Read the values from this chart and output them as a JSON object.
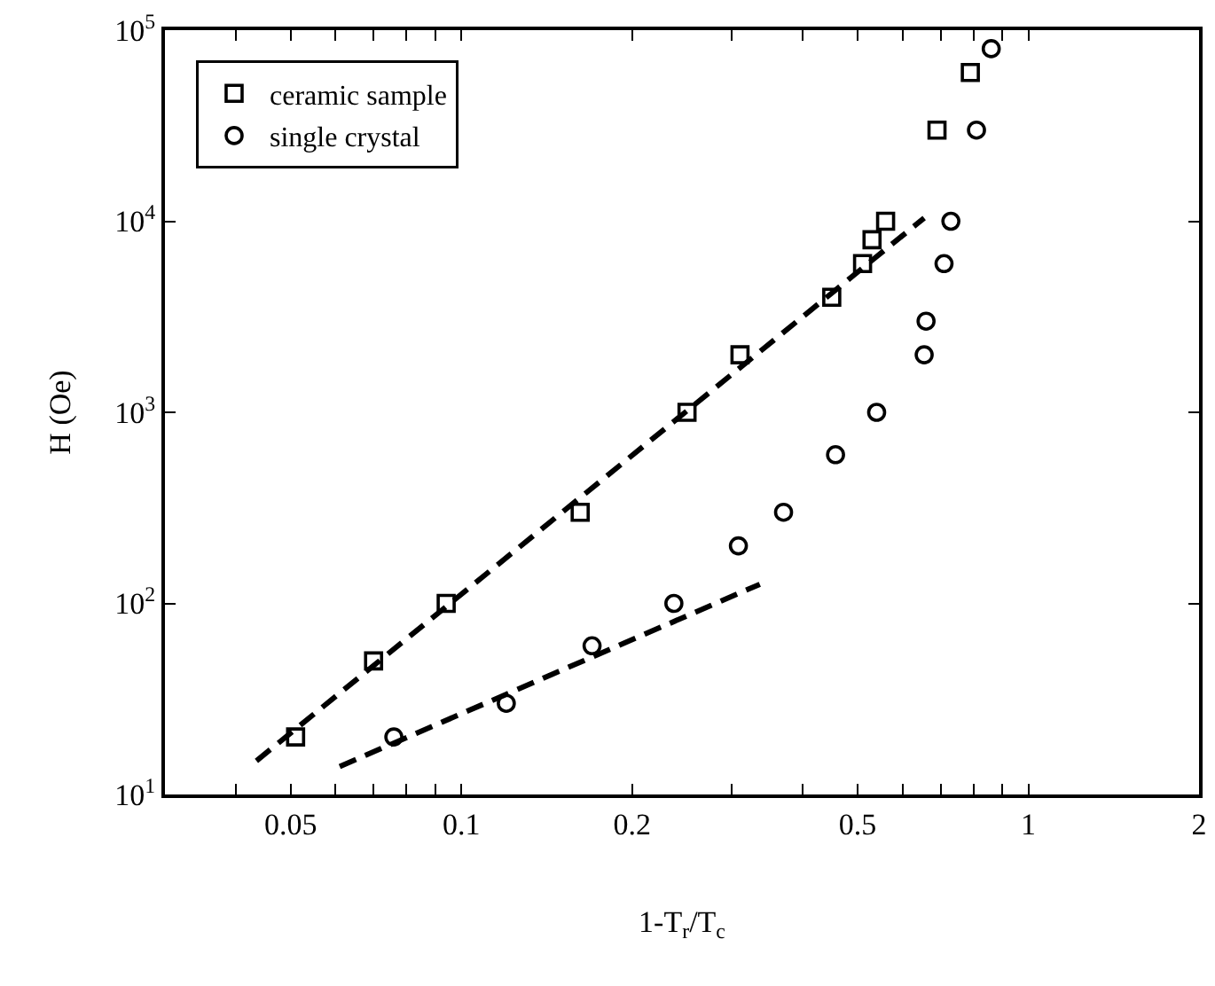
{
  "chart_data": {
    "type": "scatter",
    "xlabel": "1-T$_{r}$/T$_{c}$",
    "ylabel": "H (Oe)",
    "log": "xy",
    "legend": "top left",
    "xlim": [
      0.03,
      2
    ],
    "ylim": [
      10,
      100000
    ],
    "xticks": [
      {
        "value": 0.03,
        "label": null
      },
      {
        "value": 0.04,
        "label": null
      },
      0.05,
      {
        "value": 0.06,
        "label": null
      },
      {
        "value": 0.07,
        "label": null
      },
      {
        "value": 0.08,
        "label": null
      },
      {
        "value": 0.09,
        "label": null
      },
      0.1,
      0.2,
      {
        "value": 0.3,
        "label": null
      },
      {
        "value": 0.4,
        "label": null
      },
      0.5,
      {
        "value": 0.6,
        "label": null
      },
      {
        "value": 0.7,
        "label": null
      },
      {
        "value": 0.8,
        "label": null
      },
      {
        "value": 0.9,
        "label": null
      },
      1,
      2
    ],
    "yticks": [
      {
        "value": 10,
        "label": "10$^{1}$"
      },
      {
        "value": 100,
        "label": "10$^{2}$"
      },
      {
        "value": 1000,
        "label": "10$^{3}$"
      },
      {
        "value": 10000,
        "label": "10$^{4}$"
      },
      {
        "value": 100000,
        "label": "10$^{5}$"
      }
    ],
    "series": [
      {
        "name": "ceramic sample",
        "marker": "square",
        "color": "#000000",
        "x": [
          0.051,
          0.07,
          0.094,
          0.162,
          0.25,
          0.31,
          0.45,
          0.51,
          0.53,
          0.56,
          0.69,
          0.79
        ],
        "values": [
          20,
          50,
          100,
          300,
          1000,
          2000,
          4000,
          6000,
          8000,
          10000,
          30000,
          60000
        ]
      },
      {
        "name": "single crystal",
        "marker": "circle",
        "color": "#000000",
        "x": [
          0.076,
          0.12,
          0.17,
          0.237,
          0.308,
          0.37,
          0.457,
          0.54,
          0.655,
          0.66,
          0.71,
          0.73,
          0.81,
          0.86
        ],
        "values": [
          20,
          30,
          60,
          100,
          200,
          300,
          600,
          1000,
          2000,
          3000,
          6000,
          10000,
          30000,
          80000
        ]
      },
      {
        "type": "line",
        "line_style": "dashed",
        "color": "#000000",
        "x": [
          0.0435,
          0.655
        ],
        "values": [
          15,
          10400
        ]
      },
      {
        "type": "line",
        "line_style": "dashed",
        "color": "#000000",
        "x": [
          0.061,
          0.336
        ],
        "values": [
          14,
          126
        ]
      }
    ]
  }
}
